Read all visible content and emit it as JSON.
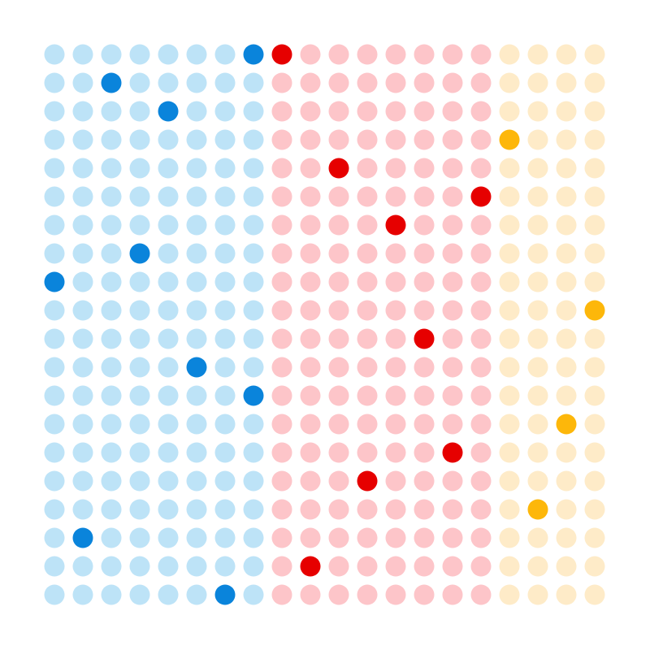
{
  "chart_data": {
    "type": "scatter",
    "subtype": "dot-grid",
    "rows": 20,
    "columns": 20,
    "groups": [
      {
        "column_start": 0,
        "column_end": 7,
        "base_color": "#bde3f7",
        "highlight_color": "#0a84db",
        "highlighted": [
          [
            0,
            7
          ],
          [
            1,
            2
          ],
          [
            2,
            4
          ],
          [
            7,
            3
          ],
          [
            8,
            0
          ],
          [
            11,
            5
          ],
          [
            12,
            7
          ],
          [
            17,
            1
          ],
          [
            19,
            6
          ]
        ]
      },
      {
        "column_start": 8,
        "column_end": 15,
        "base_color": "#fdc5c9",
        "highlight_color": "#e60000",
        "highlighted": [
          [
            0,
            8
          ],
          [
            4,
            10
          ],
          [
            5,
            15
          ],
          [
            6,
            12
          ],
          [
            10,
            13
          ],
          [
            14,
            14
          ],
          [
            15,
            11
          ],
          [
            18,
            9
          ]
        ]
      },
      {
        "column_start": 16,
        "column_end": 19,
        "base_color": "#feebc8",
        "highlight_color": "#fdb70a",
        "highlighted": [
          [
            3,
            16
          ],
          [
            9,
            19
          ],
          [
            13,
            18
          ],
          [
            16,
            17
          ]
        ]
      }
    ]
  }
}
